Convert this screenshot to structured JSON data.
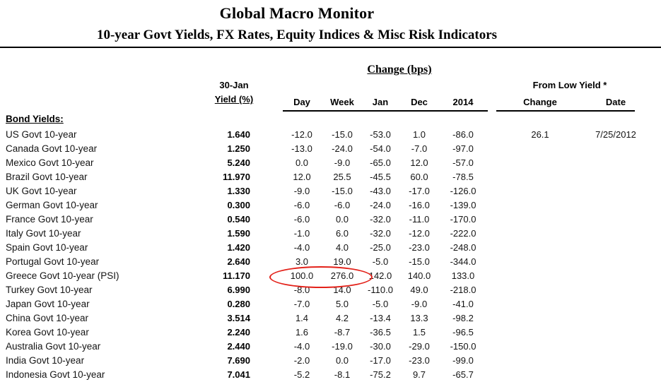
{
  "header": {
    "title": "Global Macro Monitor",
    "subtitle": "10-year Govt Yields, FX Rates, Equity Indices & Misc Risk Indicators"
  },
  "table": {
    "change_group_header": "Change (bps)",
    "asof_label": "30-Jan",
    "yield_label": "Yield (%)",
    "change_cols": {
      "day": "Day",
      "week": "Week",
      "jan": "Jan",
      "dec": "Dec",
      "y2014": "2014"
    },
    "from_low_header": "From Low Yield  *",
    "from_low_cols": {
      "change": "Change",
      "date": "Date"
    },
    "section_label": "Bond Yields:",
    "row_fields": [
      "name",
      "yield",
      "day",
      "week",
      "jan",
      "dec",
      "y2014",
      "low_change",
      "low_date"
    ],
    "rows": [
      {
        "name": "US Govt 10-year",
        "yield": "1.640",
        "day": "-12.0",
        "week": "-15.0",
        "jan": "-53.0",
        "dec": "1.0",
        "y2014": "-86.0",
        "low_change": "26.1",
        "low_date": "7/25/2012"
      },
      {
        "name": "Canada Govt 10-year",
        "yield": "1.250",
        "day": "-13.0",
        "week": "-24.0",
        "jan": "-54.0",
        "dec": "-7.0",
        "y2014": "-97.0",
        "low_change": "",
        "low_date": ""
      },
      {
        "name": "Mexico Govt 10-year",
        "yield": "5.240",
        "day": "0.0",
        "week": "-9.0",
        "jan": "-65.0",
        "dec": "12.0",
        "y2014": "-57.0",
        "low_change": "",
        "low_date": ""
      },
      {
        "name": "Brazil Govt 10-year",
        "yield": "11.970",
        "day": "12.0",
        "week": "25.5",
        "jan": "-45.5",
        "dec": "60.0",
        "y2014": "-78.5",
        "low_change": "",
        "low_date": ""
      },
      {
        "name": "UK Govt 10-year",
        "yield": "1.330",
        "day": "-9.0",
        "week": "-15.0",
        "jan": "-43.0",
        "dec": "-17.0",
        "y2014": "-126.0",
        "low_change": "",
        "low_date": ""
      },
      {
        "name": "German Govt 10-year",
        "yield": "0.300",
        "day": "-6.0",
        "week": "-6.0",
        "jan": "-24.0",
        "dec": "-16.0",
        "y2014": "-139.0",
        "low_change": "",
        "low_date": ""
      },
      {
        "name": "France Govt 10-year",
        "yield": "0.540",
        "day": "-6.0",
        "week": "0.0",
        "jan": "-32.0",
        "dec": "-11.0",
        "y2014": "-170.0",
        "low_change": "",
        "low_date": ""
      },
      {
        "name": "Italy Govt 10-year",
        "yield": "1.590",
        "day": "-1.0",
        "week": "6.0",
        "jan": "-32.0",
        "dec": "-12.0",
        "y2014": "-222.0",
        "low_change": "",
        "low_date": ""
      },
      {
        "name": "Spain Govt 10-year",
        "yield": "1.420",
        "day": "-4.0",
        "week": "4.0",
        "jan": "-25.0",
        "dec": "-23.0",
        "y2014": "-248.0",
        "low_change": "",
        "low_date": ""
      },
      {
        "name": "Portugal Govt 10-year",
        "yield": "2.640",
        "day": "3.0",
        "week": "19.0",
        "jan": "-5.0",
        "dec": "-15.0",
        "y2014": "-344.0",
        "low_change": "",
        "low_date": ""
      },
      {
        "name": "Greece Govt 10-year (PSI)",
        "yield": "11.170",
        "day": "100.0",
        "week": "276.0",
        "jan": "142.0",
        "dec": "140.0",
        "y2014": "133.0",
        "low_change": "",
        "low_date": ""
      },
      {
        "name": "Turkey Govt 10-year",
        "yield": "6.990",
        "day": "-8.0",
        "week": "14.0",
        "jan": "-110.0",
        "dec": "49.0",
        "y2014": "-218.0",
        "low_change": "",
        "low_date": ""
      },
      {
        "name": "Japan Govt 10-year",
        "yield": "0.280",
        "day": "-7.0",
        "week": "5.0",
        "jan": "-5.0",
        "dec": "-9.0",
        "y2014": "-41.0",
        "low_change": "",
        "low_date": ""
      },
      {
        "name": "China Govt 10-year",
        "yield": "3.514",
        "day": "1.4",
        "week": "4.2",
        "jan": "-13.4",
        "dec": "13.3",
        "y2014": "-98.2",
        "low_change": "",
        "low_date": ""
      },
      {
        "name": "Korea Govt 10-year",
        "yield": "2.240",
        "day": "1.6",
        "week": "-8.7",
        "jan": "-36.5",
        "dec": "1.5",
        "y2014": "-96.5",
        "low_change": "",
        "low_date": ""
      },
      {
        "name": "Australia Govt 10-year",
        "yield": "2.440",
        "day": "-4.0",
        "week": "-19.0",
        "jan": "-30.0",
        "dec": "-29.0",
        "y2014": "-150.0",
        "low_change": "",
        "low_date": ""
      },
      {
        "name": "India Govt 10-year",
        "yield": "7.690",
        "day": "-2.0",
        "week": "0.0",
        "jan": "-17.0",
        "dec": "-23.0",
        "y2014": "-99.0",
        "low_change": "",
        "low_date": ""
      },
      {
        "name": "Indonesia Govt 10-year",
        "yield": "7.041",
        "day": "-5.2",
        "week": "-8.1",
        "jan": "-75.2",
        "dec": "9.7",
        "y2014": "-65.7",
        "low_change": "",
        "low_date": ""
      }
    ],
    "highlight": {
      "row": "Greece Govt 10-year (PSI)",
      "columns": [
        "day",
        "week"
      ],
      "values": [
        "100.0",
        "276.0"
      ],
      "shape": "ellipse",
      "color": "#e32119"
    }
  }
}
